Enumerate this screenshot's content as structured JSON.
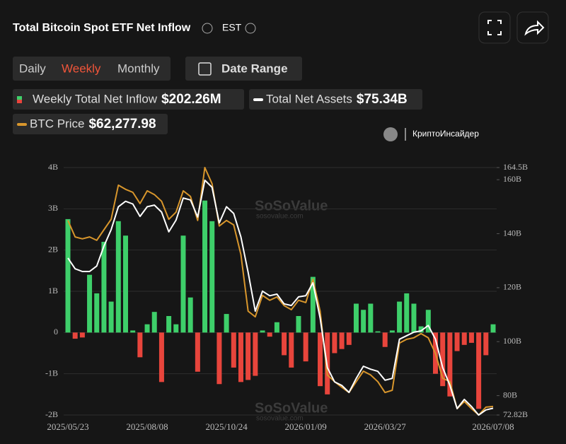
{
  "header": {
    "title": "Total Bitcoin Spot ETF Net Inflow",
    "timezone": "EST"
  },
  "tabs": [
    "Daily",
    "Weekly",
    "Monthly"
  ],
  "active_tab": 1,
  "date_button": "Date Range",
  "watermarks": {
    "source": "КриптоИнсайдер",
    "brand": "SoSoValue",
    "site": "sosovalue.com"
  },
  "chart_data": {
    "type": "bar-line",
    "categories": [
      "2025/05/23",
      null,
      null,
      null,
      null,
      null,
      null,
      null,
      null,
      null,
      null,
      "2025/08/08",
      null,
      null,
      null,
      null,
      null,
      null,
      null,
      null,
      null,
      null,
      "2025/10/24",
      null,
      null,
      null,
      null,
      null,
      null,
      null,
      null,
      null,
      null,
      "2026/01/09",
      null,
      null,
      null,
      null,
      null,
      null,
      null,
      null,
      null,
      null,
      "2026/03/27",
      null,
      null,
      null,
      null,
      null,
      null,
      null,
      null,
      null,
      null,
      null,
      null,
      null,
      null,
      "2026/07/08"
    ],
    "series": [
      {
        "name": "Weekly Total Net Inflow",
        "current_label": "$202.26M",
        "pos_color": "#3ecf6a",
        "neg_color": "#e8453c",
        "values": [
          2.75,
          -0.15,
          -0.12,
          1.4,
          0.95,
          2.2,
          0.75,
          2.7,
          2.35,
          0.05,
          -0.6,
          0.2,
          0.5,
          -1.2,
          0.4,
          0.2,
          2.35,
          0.85,
          -0.95,
          3.2,
          2.7,
          -1.25,
          0.45,
          -0.85,
          -1.2,
          -1.15,
          -1.05,
          0.05,
          -0.1,
          0.25,
          -0.55,
          -0.85,
          0.4,
          -0.7,
          1.35,
          -1.3,
          -1.5,
          -0.5,
          -0.4,
          -0.3,
          0.7,
          0.55,
          0.7,
          0.03,
          -0.35,
          0.05,
          0.75,
          0.95,
          0.7,
          0.15,
          0.55,
          -1.0,
          -1.3,
          -1.55,
          -0.45,
          -0.3,
          -0.25,
          -1.85,
          -0.55,
          0.2
        ]
      },
      {
        "name": "Total Net Assets",
        "current_label": "$75.34B",
        "color": "#ffffff",
        "axis": "y2",
        "values": [
          131,
          127,
          126,
          126,
          128,
          135.4,
          141.5,
          150,
          152,
          151,
          146.4,
          150,
          150.6,
          148,
          140.7,
          145,
          153.2,
          152.5,
          146.2,
          159.8,
          157.2,
          144,
          150,
          147.5,
          138.8,
          125.7,
          111.3,
          118.7,
          117,
          117.6,
          114,
          113.4,
          116.6,
          117,
          121.8,
          108.7,
          90.4,
          85.1,
          83.8,
          81.2,
          86.4,
          90.9,
          89.8,
          89,
          85.7,
          86.4,
          100.9,
          102.2,
          103.5,
          104,
          106,
          100.9,
          90.4,
          83.8,
          75.2,
          78.6,
          76,
          72.8,
          74.7,
          75.34
        ]
      },
      {
        "name": "BTC Price",
        "current_label": "$62,277.98",
        "color": "#d8962c",
        "axis": "y3",
        "values": [
          111900,
          107500,
          107000,
          107500,
          106600,
          109400,
          112200,
          121300,
          120200,
          119400,
          116400,
          119800,
          118800,
          117000,
          112200,
          114100,
          119800,
          118300,
          111900,
          126000,
          121700,
          110400,
          111900,
          110700,
          102800,
          87700,
          86200,
          91900,
          90600,
          91500,
          89200,
          88100,
          90600,
          90000,
          96200,
          87700,
          70700,
          68900,
          67400,
          66000,
          68900,
          71700,
          70700,
          68900,
          66000,
          66600,
          79200,
          80200,
          80600,
          81700,
          80600,
          76400,
          69800,
          68900,
          61700,
          63600,
          61700,
          60000,
          62100,
          62278
        ]
      }
    ],
    "ylim": [
      -2,
      4
    ],
    "yticks": [
      {
        "value": 4,
        "label": "4B"
      },
      {
        "value": 3,
        "label": "3B"
      },
      {
        "value": 2,
        "label": "2B"
      },
      {
        "value": 1,
        "label": "1B"
      },
      0,
      {
        "value": -1,
        "label": "-1B"
      },
      {
        "value": -2,
        "label": "-2B"
      }
    ],
    "y2lim": [
      72.82,
      164.5
    ],
    "y2ticks": [
      {
        "value": 164.5,
        "label": "164.5B"
      },
      {
        "value": 160,
        "label": "160B"
      },
      {
        "value": 140,
        "label": "140B"
      },
      {
        "value": 120,
        "label": "120B"
      },
      {
        "value": 100,
        "label": "100B"
      },
      {
        "value": 80,
        "label": "80B"
      },
      {
        "value": 72.82,
        "label": "72.82B"
      }
    ],
    "y3lim": [
      60000,
      126000
    ],
    "grid": true
  }
}
